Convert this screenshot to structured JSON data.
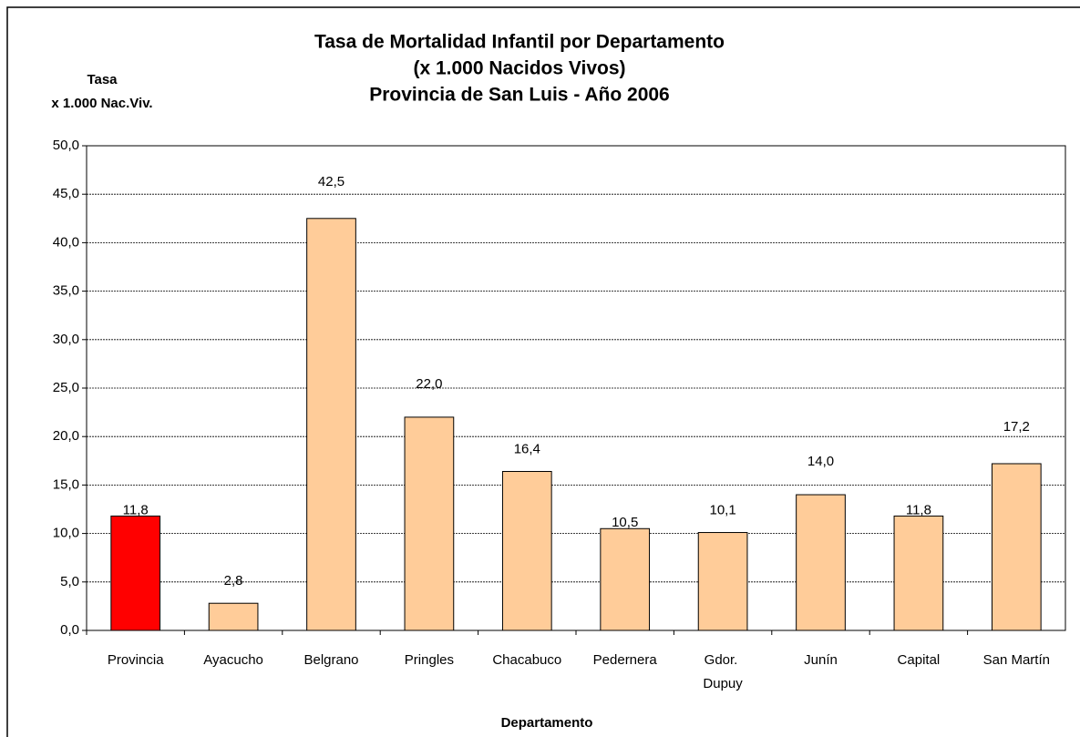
{
  "chart_data": {
    "type": "bar",
    "title": [
      "Tasa de Mortalidad Infantil por Departamento",
      "(x 1.000 Nacidos Vivos)",
      "Provincia de San Luis - Año 2006"
    ],
    "y_label": [
      "Tasa",
      "x 1.000 Nac.Viv."
    ],
    "x_label": "Departamento",
    "categories": [
      "Provincia",
      "Ayacucho",
      "Belgrano",
      "Pringles",
      "Chacabuco",
      "Pedernera",
      "Gdor. Dupuy",
      "Junín",
      "Capital",
      "San Martín"
    ],
    "values": [
      11.8,
      2.8,
      42.5,
      22.0,
      16.4,
      10.5,
      10.1,
      14.0,
      11.8,
      17.2
    ],
    "value_labels": [
      "11,8",
      "2,8",
      "42,5",
      "22,0",
      "16,4",
      "10,5",
      "10,1",
      "14,0",
      "11,8",
      "17,2"
    ],
    "colors": [
      "#ff0000",
      "#ffcc99",
      "#ffcc99",
      "#ffcc99",
      "#ffcc99",
      "#ffcc99",
      "#ffcc99",
      "#ffcc99",
      "#ffcc99",
      "#ffcc99"
    ],
    "ylim": [
      0,
      50
    ],
    "yticks": [
      {
        "value": 0,
        "label": "0,0"
      },
      {
        "value": 5,
        "label": "5,0"
      },
      {
        "value": 10,
        "label": "10,0"
      },
      {
        "value": 15,
        "label": "15,0"
      },
      {
        "value": 20,
        "label": "20,0"
      },
      {
        "value": 25,
        "label": "25,0"
      },
      {
        "value": 30,
        "label": "30,0"
      },
      {
        "value": 35,
        "label": "35,0"
      },
      {
        "value": 40,
        "label": "40,0"
      },
      {
        "value": 45,
        "label": "45,0"
      },
      {
        "value": 50,
        "label": "50,0"
      }
    ],
    "grid": true
  }
}
